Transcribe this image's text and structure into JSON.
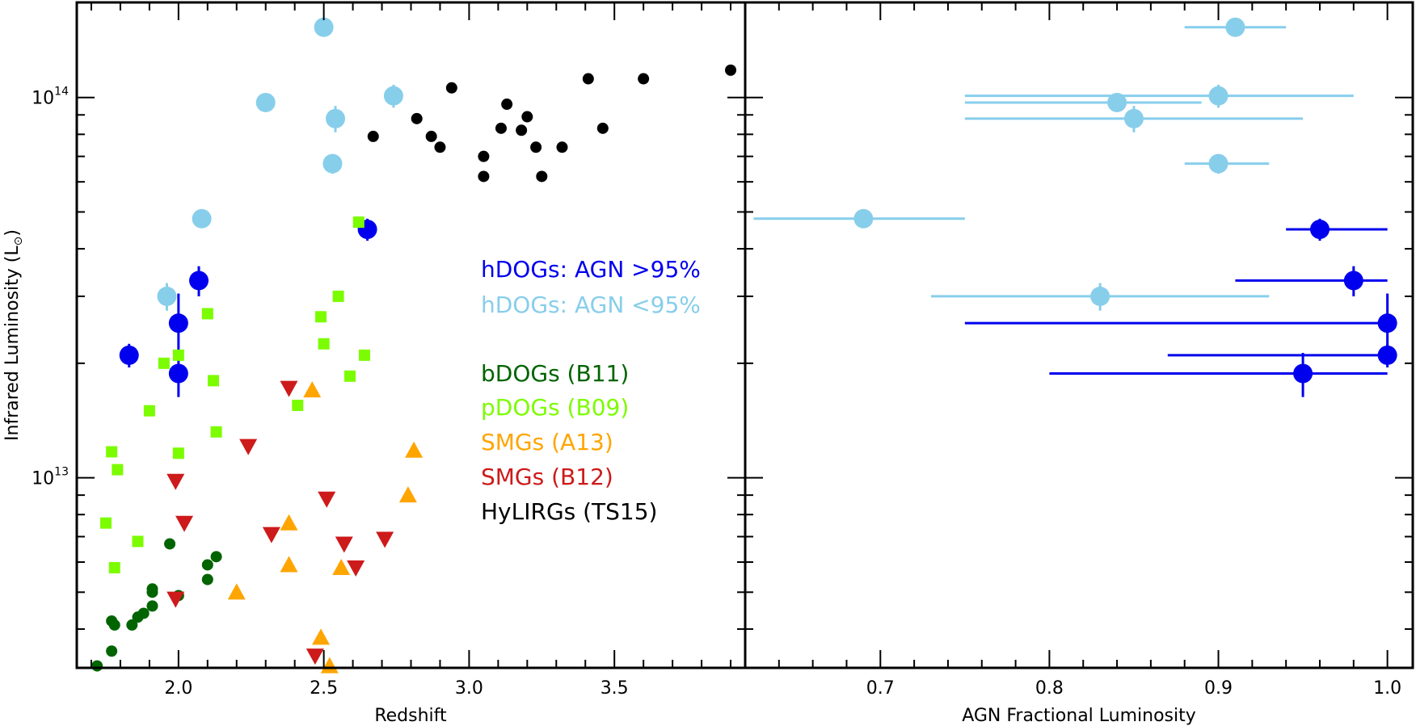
{
  "chart_data": [
    {
      "type": "scatter",
      "panel": "left",
      "xlabel": "Redshift",
      "ylabel": "Infrared Luminosity (L",
      "ylabel_sub": "⊙",
      "ylabel_close": ")",
      "xlim": [
        1.65,
        3.95
      ],
      "ylim_log10": [
        12.5,
        14.25
      ],
      "x_ticks": [
        2.0,
        2.5,
        3.0,
        3.5
      ],
      "x_tick_labels": [
        "2.0",
        "2.5",
        "3.0",
        "3.5"
      ],
      "y_ticks_log10": [
        13,
        14
      ],
      "y_tick_labels": [
        {
          "base": "10",
          "exp": "13"
        },
        {
          "base": "10",
          "exp": "14"
        }
      ],
      "legend": [
        {
          "label": "hDOGs: AGN >95%",
          "color": "#0000ee"
        },
        {
          "label": "hDOGs: AGN <95%",
          "color": "#87ceeb"
        },
        {
          "label": "bDOGs (B11)",
          "color": "#006400"
        },
        {
          "label": "pDOGs (B09)",
          "color": "#7cfc00"
        },
        {
          "label": "SMGs (A13)",
          "color": "#ffa500"
        },
        {
          "label": "SMGs (B12)",
          "color": "#cd1a1a"
        },
        {
          "label": "HyLIRGs (TS15)",
          "color": "#000000"
        }
      ],
      "series": [
        {
          "name": "hDOGs: AGN >95%",
          "marker": "big-circle",
          "color": "#0000ee",
          "points": [
            [
              1.83,
              21000000000000.0,
              1500000000000.0
            ],
            [
              2.0,
              18800000000000.0,
              2500000000000.0
            ],
            [
              2.0,
              25500000000000.0,
              5000000000000.0
            ],
            [
              2.07,
              33000000000000.0,
              3000000000000.0
            ],
            [
              2.65,
              45000000000000.0,
              3000000000000.0
            ]
          ]
        },
        {
          "name": "hDOGs: AGN <95%",
          "marker": "big-circle",
          "color": "#87ceeb",
          "points": [
            [
              1.96,
              30000000000000.0,
              2500000000000.0
            ],
            [
              2.08,
              48000000000000.0,
              2000000000000.0
            ],
            [
              2.3,
              97000000000000.0,
              5000000000000.0
            ],
            [
              2.5,
              153000000000000.0,
              8000000000000.0
            ],
            [
              2.53,
              67000000000000.0,
              4000000000000.0
            ],
            [
              2.54,
              88000000000000.0,
              7000000000000.0
            ],
            [
              2.74,
              101000000000000.0,
              7000000000000.0
            ]
          ]
        },
        {
          "name": "bDOGs (B11)",
          "marker": "circle",
          "color": "#006400",
          "points": [
            [
              1.72,
              3200000000000.0
            ],
            [
              1.77,
              3500000000000.0
            ],
            [
              1.77,
              4200000000000.0
            ],
            [
              1.78,
              4100000000000.0
            ],
            [
              1.84,
              4100000000000.0
            ],
            [
              1.86,
              4300000000000.0
            ],
            [
              1.88,
              4400000000000.0
            ],
            [
              1.91,
              4600000000000.0
            ],
            [
              1.91,
              5000000000000.0
            ],
            [
              1.91,
              5100000000000.0
            ],
            [
              1.97,
              6700000000000.0
            ],
            [
              2.0,
              4900000000000.0
            ],
            [
              2.1,
              5400000000000.0
            ],
            [
              2.1,
              5900000000000.0
            ],
            [
              2.13,
              6200000000000.0
            ]
          ]
        },
        {
          "name": "pDOGs (B09)",
          "marker": "square",
          "color": "#7cfc00",
          "points": [
            [
              1.75,
              7600000000000.0
            ],
            [
              1.77,
              11700000000000.0
            ],
            [
              1.78,
              5800000000000.0
            ],
            [
              1.79,
              10500000000000.0
            ],
            [
              1.86,
              6800000000000.0
            ],
            [
              1.9,
              15000000000000.0
            ],
            [
              1.95,
              20000000000000.0
            ],
            [
              2.0,
              11600000000000.0
            ],
            [
              2.0,
              21000000000000.0
            ],
            [
              2.1,
              27000000000000.0
            ],
            [
              2.12,
              18000000000000.0
            ],
            [
              2.13,
              13200000000000.0
            ],
            [
              2.41,
              15500000000000.0
            ],
            [
              2.49,
              26500000000000.0
            ],
            [
              2.5,
              22500000000000.0
            ],
            [
              2.55,
              30000000000000.0
            ],
            [
              2.59,
              18500000000000.0
            ],
            [
              2.62,
              47000000000000.0
            ],
            [
              2.64,
              21000000000000.0
            ]
          ]
        },
        {
          "name": "SMGs (A13)",
          "marker": "triangle-up",
          "color": "#ffa500",
          "points": [
            [
              2.2,
              5000000000000.0
            ],
            [
              2.38,
              5900000000000.0
            ],
            [
              2.38,
              7600000000000.0
            ],
            [
              2.46,
              17000000000000.0
            ],
            [
              2.49,
              3800000000000.0
            ],
            [
              2.52,
              3200000000000.0
            ],
            [
              2.56,
              5800000000000.0
            ],
            [
              2.79,
              9000000000000.0
            ],
            [
              2.81,
              11800000000000.0
            ]
          ]
        },
        {
          "name": "SMGs (B12)",
          "marker": "triangle-down",
          "color": "#cd1a1a",
          "points": [
            [
              1.99,
              9800000000000.0
            ],
            [
              1.99,
              4800000000000.0
            ],
            [
              2.02,
              7600000000000.0
            ],
            [
              2.24,
              12100000000000.0
            ],
            [
              2.32,
              7100000000000.0
            ],
            [
              2.38,
              17200000000000.0
            ],
            [
              2.47,
              3400000000000.0
            ],
            [
              2.51,
              8800000000000.0
            ],
            [
              2.57,
              6700000000000.0
            ],
            [
              2.61,
              5800000000000.0
            ],
            [
              2.71,
              6900000000000.0
            ]
          ]
        },
        {
          "name": "HyLIRGs (TS15)",
          "marker": "circle",
          "color": "#000000",
          "points": [
            [
              2.67,
              79000000000000.0
            ],
            [
              2.82,
              88000000000000.0
            ],
            [
              2.87,
              79000000000000.0
            ],
            [
              2.9,
              74000000000000.0
            ],
            [
              2.94,
              106000000000000.0
            ],
            [
              3.05,
              70000000000000.0
            ],
            [
              3.05,
              62000000000000.0
            ],
            [
              3.11,
              83000000000000.0
            ],
            [
              3.13,
              96000000000000.0
            ],
            [
              3.18,
              82000000000000.0
            ],
            [
              3.2,
              89000000000000.0
            ],
            [
              3.23,
              74000000000000.0
            ],
            [
              3.25,
              62000000000000.0
            ],
            [
              3.32,
              74000000000000.0
            ],
            [
              3.41,
              112000000000000.0
            ],
            [
              3.46,
              83000000000000.0
            ],
            [
              3.6,
              112000000000000.0
            ],
            [
              3.9,
              118000000000000.0
            ]
          ]
        }
      ]
    },
    {
      "type": "scatter",
      "panel": "right",
      "xlabel": "AGN Fractional Luminosity",
      "ylabel": "",
      "xlim": [
        0.62,
        1.015
      ],
      "ylim_log10": [
        12.5,
        14.25
      ],
      "x_ticks": [
        0.7,
        0.8,
        0.9,
        1.0
      ],
      "x_tick_labels": [
        "0.7",
        "0.8",
        "0.9",
        "1.0"
      ],
      "y_ticks_log10": [
        13,
        14
      ],
      "series": [
        {
          "name": "hDOGs: AGN >95%",
          "marker": "big-circle",
          "color": "#0000ee",
          "points": [
            {
              "x": 0.95,
              "y": 18800000000000.0,
              "xlo": 0.8,
              "xhi": 1.0,
              "yerr": 2500000000000.0
            },
            {
              "x": 1.0,
              "y": 21000000000000.0,
              "xlo": 0.87,
              "xhi": 1.0,
              "yerr": 1500000000000.0
            },
            {
              "x": 1.0,
              "y": 25500000000000.0,
              "xlo": 0.75,
              "xhi": 1.0,
              "yerr": 5000000000000.0
            },
            {
              "x": 0.98,
              "y": 33000000000000.0,
              "xlo": 0.91,
              "xhi": 1.0,
              "yerr": 3000000000000.0
            },
            {
              "x": 0.96,
              "y": 45000000000000.0,
              "xlo": 0.94,
              "xhi": 1.0,
              "yerr": 3000000000000.0
            }
          ]
        },
        {
          "name": "hDOGs: AGN <95%",
          "marker": "big-circle",
          "color": "#87ceeb",
          "points": [
            {
              "x": 0.83,
              "y": 30000000000000.0,
              "xlo": 0.73,
              "xhi": 0.93,
              "yerr": 2500000000000.0
            },
            {
              "x": 0.69,
              "y": 48000000000000.0,
              "xlo": 0.625,
              "xhi": 0.75,
              "yerr": 2000000000000.0
            },
            {
              "x": 0.9,
              "y": 67000000000000.0,
              "xlo": 0.88,
              "xhi": 0.93,
              "yerr": 4000000000000.0
            },
            {
              "x": 0.85,
              "y": 88000000000000.0,
              "xlo": 0.75,
              "xhi": 0.95,
              "yerr": 7000000000000.0
            },
            {
              "x": 0.84,
              "y": 97000000000000.0,
              "xlo": 0.75,
              "xhi": 0.89,
              "yerr": 5000000000000.0
            },
            {
              "x": 0.9,
              "y": 101000000000000.0,
              "xlo": 0.75,
              "xhi": 0.98,
              "yerr": 7000000000000.0
            },
            {
              "x": 0.91,
              "y": 153000000000000.0,
              "xlo": 0.88,
              "xhi": 0.94,
              "yerr": 8000000000000.0
            }
          ]
        }
      ]
    }
  ]
}
